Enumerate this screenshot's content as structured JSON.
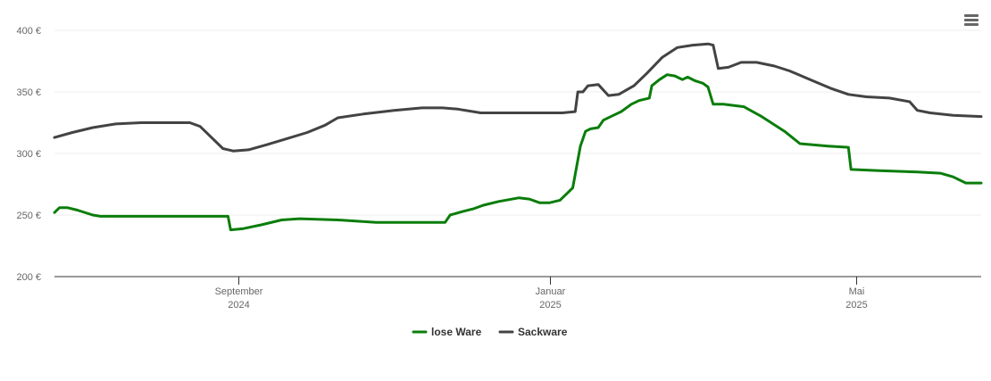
{
  "chart_data": {
    "type": "line",
    "currency_suffix": " €",
    "y_ticks": [
      200,
      250,
      300,
      350,
      400
    ],
    "ylim": [
      200,
      410
    ],
    "x_axis": {
      "start": "2024-06-21",
      "end": "2025-06-19",
      "ticks": [
        {
          "date": "2024-09-01",
          "month": "September",
          "year": "2024"
        },
        {
          "date": "2025-01-01",
          "month": "Januar",
          "year": "2025"
        },
        {
          "date": "2025-05-01",
          "month": "Mai",
          "year": "2025"
        }
      ]
    },
    "grid": true,
    "legend_position": "bottom-center",
    "series": [
      {
        "name": "lose Ware",
        "color": "#0a7d0a",
        "points": [
          [
            "2024-06-21",
            252
          ],
          [
            "2024-06-23",
            256
          ],
          [
            "2024-06-26",
            256
          ],
          [
            "2024-06-30",
            254
          ],
          [
            "2024-07-06",
            250
          ],
          [
            "2024-07-09",
            249
          ],
          [
            "2024-07-20",
            249
          ],
          [
            "2024-08-10",
            249
          ],
          [
            "2024-08-28",
            249
          ],
          [
            "2024-08-29",
            238
          ],
          [
            "2024-09-03",
            239
          ],
          [
            "2024-09-10",
            242
          ],
          [
            "2024-09-18",
            246
          ],
          [
            "2024-09-25",
            247
          ],
          [
            "2024-10-10",
            246
          ],
          [
            "2024-10-25",
            244
          ],
          [
            "2024-11-10",
            244
          ],
          [
            "2024-11-21",
            244
          ],
          [
            "2024-11-23",
            250
          ],
          [
            "2024-11-28",
            253
          ],
          [
            "2024-12-02",
            255
          ],
          [
            "2024-12-06",
            258
          ],
          [
            "2024-12-12",
            261
          ],
          [
            "2024-12-20",
            264
          ],
          [
            "2024-12-24",
            263
          ],
          [
            "2024-12-28",
            260
          ],
          [
            "2025-01-01",
            260
          ],
          [
            "2025-01-05",
            262
          ],
          [
            "2025-01-10",
            272
          ],
          [
            "2025-01-13",
            306
          ],
          [
            "2025-01-15",
            318
          ],
          [
            "2025-01-17",
            320
          ],
          [
            "2025-01-20",
            321
          ],
          [
            "2025-01-22",
            327
          ],
          [
            "2025-01-26",
            331
          ],
          [
            "2025-01-29",
            334
          ],
          [
            "2025-02-02",
            340
          ],
          [
            "2025-02-05",
            343
          ],
          [
            "2025-02-09",
            345
          ],
          [
            "2025-02-10",
            355
          ],
          [
            "2025-02-13",
            360
          ],
          [
            "2025-02-16",
            364
          ],
          [
            "2025-02-19",
            363
          ],
          [
            "2025-02-22",
            360
          ],
          [
            "2025-02-24",
            362
          ],
          [
            "2025-02-27",
            359
          ],
          [
            "2025-03-02",
            357
          ],
          [
            "2025-03-04",
            354
          ],
          [
            "2025-03-06",
            340
          ],
          [
            "2025-03-10",
            340
          ],
          [
            "2025-03-18",
            338
          ],
          [
            "2025-03-25",
            330
          ],
          [
            "2025-04-03",
            318
          ],
          [
            "2025-04-09",
            308
          ],
          [
            "2025-04-14",
            307
          ],
          [
            "2025-04-20",
            306
          ],
          [
            "2025-04-28",
            305
          ],
          [
            "2025-04-29",
            287
          ],
          [
            "2025-05-10",
            286
          ],
          [
            "2025-05-25",
            285
          ],
          [
            "2025-06-03",
            284
          ],
          [
            "2025-06-08",
            281
          ],
          [
            "2025-06-13",
            276
          ],
          [
            "2025-06-19",
            276
          ]
        ]
      },
      {
        "name": "Sackware",
        "color": "#434343",
        "points": [
          [
            "2024-06-21",
            313
          ],
          [
            "2024-06-28",
            317
          ],
          [
            "2024-07-06",
            321
          ],
          [
            "2024-07-15",
            324
          ],
          [
            "2024-07-25",
            325
          ],
          [
            "2024-08-05",
            325
          ],
          [
            "2024-08-13",
            325
          ],
          [
            "2024-08-17",
            322
          ],
          [
            "2024-08-22",
            312
          ],
          [
            "2024-08-26",
            304
          ],
          [
            "2024-08-30",
            302
          ],
          [
            "2024-09-05",
            303
          ],
          [
            "2024-09-12",
            307
          ],
          [
            "2024-09-20",
            312
          ],
          [
            "2024-09-28",
            317
          ],
          [
            "2024-10-05",
            323
          ],
          [
            "2024-10-10",
            329
          ],
          [
            "2024-10-20",
            332
          ],
          [
            "2024-11-01",
            335
          ],
          [
            "2024-11-12",
            337
          ],
          [
            "2024-11-20",
            337
          ],
          [
            "2024-11-26",
            336
          ],
          [
            "2024-12-05",
            333
          ],
          [
            "2024-12-20",
            333
          ],
          [
            "2025-01-06",
            333
          ],
          [
            "2025-01-11",
            334
          ],
          [
            "2025-01-12",
            350
          ],
          [
            "2025-01-14",
            350
          ],
          [
            "2025-01-16",
            355
          ],
          [
            "2025-01-20",
            356
          ],
          [
            "2025-01-24",
            347
          ],
          [
            "2025-01-28",
            348
          ],
          [
            "2025-02-03",
            355
          ],
          [
            "2025-02-08",
            365
          ],
          [
            "2025-02-14",
            378
          ],
          [
            "2025-02-20",
            386
          ],
          [
            "2025-02-26",
            388
          ],
          [
            "2025-03-04",
            389
          ],
          [
            "2025-03-06",
            388
          ],
          [
            "2025-03-08",
            369
          ],
          [
            "2025-03-12",
            370
          ],
          [
            "2025-03-17",
            374
          ],
          [
            "2025-03-23",
            374
          ],
          [
            "2025-03-30",
            371
          ],
          [
            "2025-04-05",
            367
          ],
          [
            "2025-04-13",
            360
          ],
          [
            "2025-04-21",
            353
          ],
          [
            "2025-04-28",
            348
          ],
          [
            "2025-05-05",
            346
          ],
          [
            "2025-05-14",
            345
          ],
          [
            "2025-05-22",
            342
          ],
          [
            "2025-05-25",
            335
          ],
          [
            "2025-05-30",
            333
          ],
          [
            "2025-06-08",
            331
          ],
          [
            "2025-06-19",
            330
          ]
        ]
      }
    ]
  },
  "menu": {
    "icon": "hamburger-menu-icon"
  }
}
